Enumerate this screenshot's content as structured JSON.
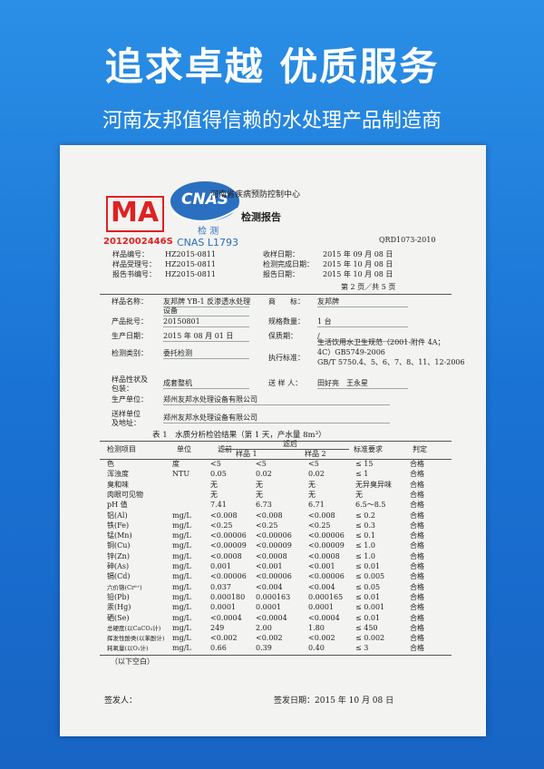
{
  "header": {
    "title": "追求卓越 优质服务",
    "subtitle": "河南友邦值得信赖的水处理产品制造商"
  },
  "report": {
    "ma_logo": "MA",
    "ma_number": "2012002446S",
    "cnas_logo": "CNAS",
    "cnas_text": "检 测",
    "cnas_number": "CNAS L1793",
    "organization": "河南省疾病预防控制中心",
    "title": "检测报告",
    "code": "QRD1073-2010",
    "meta": [
      {
        "label": "样品编号：",
        "value": "HZ2015-0811",
        "label2": "收样日期：",
        "value2": "2015 年 09 月 08 日"
      },
      {
        "label": "样品受理号：",
        "value": "HZ2015-0811",
        "label2": "检测完成日期：",
        "value2": "2015 年 10 月 08 日"
      },
      {
        "label": "报告书编号：",
        "value": "HZ2015-0811",
        "label2": "报告日期：",
        "value2": "2015 年 10 月 08 日"
      }
    ],
    "page": "第 2 页／共 5 页",
    "info": [
      {
        "label": [
          "样品名称："
        ],
        "value": [
          "友邦牌 YB-1 反渗透水处理",
          "设备"
        ],
        "label2": [
          "商　　标："
        ],
        "value2": [
          "友邦牌"
        ]
      },
      {
        "label": [
          "产品批号："
        ],
        "value": [
          "20150801"
        ],
        "label2": [
          "规格数量："
        ],
        "value2": [
          "1 台"
        ]
      },
      {
        "label": [
          "生产日期："
        ],
        "value": [
          "2015 年 08 月 01 日"
        ],
        "label2": [
          "保质期："
        ],
        "value2": [
          "/"
        ]
      },
      {
        "label": [
          "检测类别："
        ],
        "value": [
          "委托检测"
        ],
        "label2": [
          "执行标准："
        ],
        "value2": [
          "生活饮用水卫生规范（2001-附件 4A；",
          "4C）GB5749-2006",
          "GB/T 5750.4、5、6、7、8、11、12-2006"
        ]
      },
      {
        "label": [
          "样品性状及",
          "包装："
        ],
        "value": [
          "成套整机"
        ],
        "label2": [
          "送 样 人："
        ],
        "value2": [
          "田好亮　王永星"
        ]
      },
      {
        "label": [
          "生产单位："
        ],
        "value": [
          "郑州友邦水处理设备有限公司"
        ]
      },
      {
        "label": [
          "送样单位",
          "及地址："
        ],
        "value": [
          "郑州友邦水处理设备有限公司"
        ]
      }
    ],
    "table": {
      "caption": "表 1　水质分析检验结果（第 1 天，产水量 8m³）",
      "headers": {
        "item": "检测项目",
        "unit": "单位",
        "before": "滤前",
        "after": "滤后",
        "sample1": "样品 1",
        "sample2": "样品 2",
        "standard": "标准要求",
        "judgement": "判定"
      },
      "rows": [
        [
          "色",
          "度",
          "<5",
          "<5",
          "<5",
          "≤ 15",
          "合格"
        ],
        [
          "浑浊度",
          "NTU",
          "0.05",
          "0.02",
          "0.02",
          "≤ 1",
          "合格"
        ],
        [
          "臭和味",
          "",
          "无",
          "无",
          "无",
          "无异臭异味",
          "合格"
        ],
        [
          "肉眼可见物",
          "",
          "无",
          "无",
          "无",
          "无",
          "合格"
        ],
        [
          "pH 值",
          "",
          "7.41",
          "6.73",
          "6.71",
          "6.5～8.5",
          "合格"
        ],
        [
          "铝(Al)",
          "mg/L",
          "<0.008",
          "<0.008",
          "<0.008",
          "≤ 0.2",
          "合格"
        ],
        [
          "铁(Fe)",
          "mg/L",
          "<0.25",
          "<0.25",
          "<0.25",
          "≤ 0.3",
          "合格"
        ],
        [
          "锰(Mn)",
          "mg/L",
          "<0.00006",
          "<0.00006",
          "<0.00006",
          "≤ 0.1",
          "合格"
        ],
        [
          "铜(Cu)",
          "mg/L",
          "<0.00009",
          "<0.00009",
          "<0.00009",
          "≤ 1.0",
          "合格"
        ],
        [
          "锌(Zn)",
          "mg/L",
          "<0.0008",
          "<0.0008",
          "<0.0008",
          "≤ 1.0",
          "合格"
        ],
        [
          "砷(As)",
          "mg/L",
          "0.001",
          "<0.001",
          "<0.001",
          "≤ 0.01",
          "合格"
        ],
        [
          "镉(Cd)",
          "mg/L",
          "<0.00006",
          "<0.00006",
          "<0.00006",
          "≤ 0.005",
          "合格"
        ],
        [
          "六价铬(Cr⁶⁺)",
          "mg/L",
          "0.037",
          "<0.004",
          "<0.004",
          "≤ 0.05",
          "合格"
        ],
        [
          "铅(Pb)",
          "mg/L",
          "0.000180",
          "0.000163",
          "0.000165",
          "≤ 0.01",
          "合格"
        ],
        [
          "汞(Hg)",
          "mg/L",
          "0.0001",
          "0.0001",
          "0.0001",
          "≤ 0.001",
          "合格"
        ],
        [
          "硒(Se)",
          "mg/L",
          "<0.0004",
          "<0.0004",
          "<0.0004",
          "≤ 0.01",
          "合格"
        ],
        [
          "总硬度(以CaCO₃计)",
          "mg/L",
          "249",
          "2.00",
          "1.80",
          "≤ 450",
          "合格"
        ],
        [
          "挥发性酚类(以苯酚计)",
          "mg/L",
          "<0.002",
          "<0.002",
          "<0.002",
          "≤ 0.002",
          "合格"
        ],
        [
          "耗氧量(以O₂计)",
          "mg/L",
          "0.66",
          "0.39",
          "0.40",
          "≤ 3",
          "合格"
        ]
      ],
      "end_note": "（以下空白）"
    },
    "signer_label": "签发人：",
    "sign_date": "签发日期：2015 年 10 月 08 日"
  }
}
